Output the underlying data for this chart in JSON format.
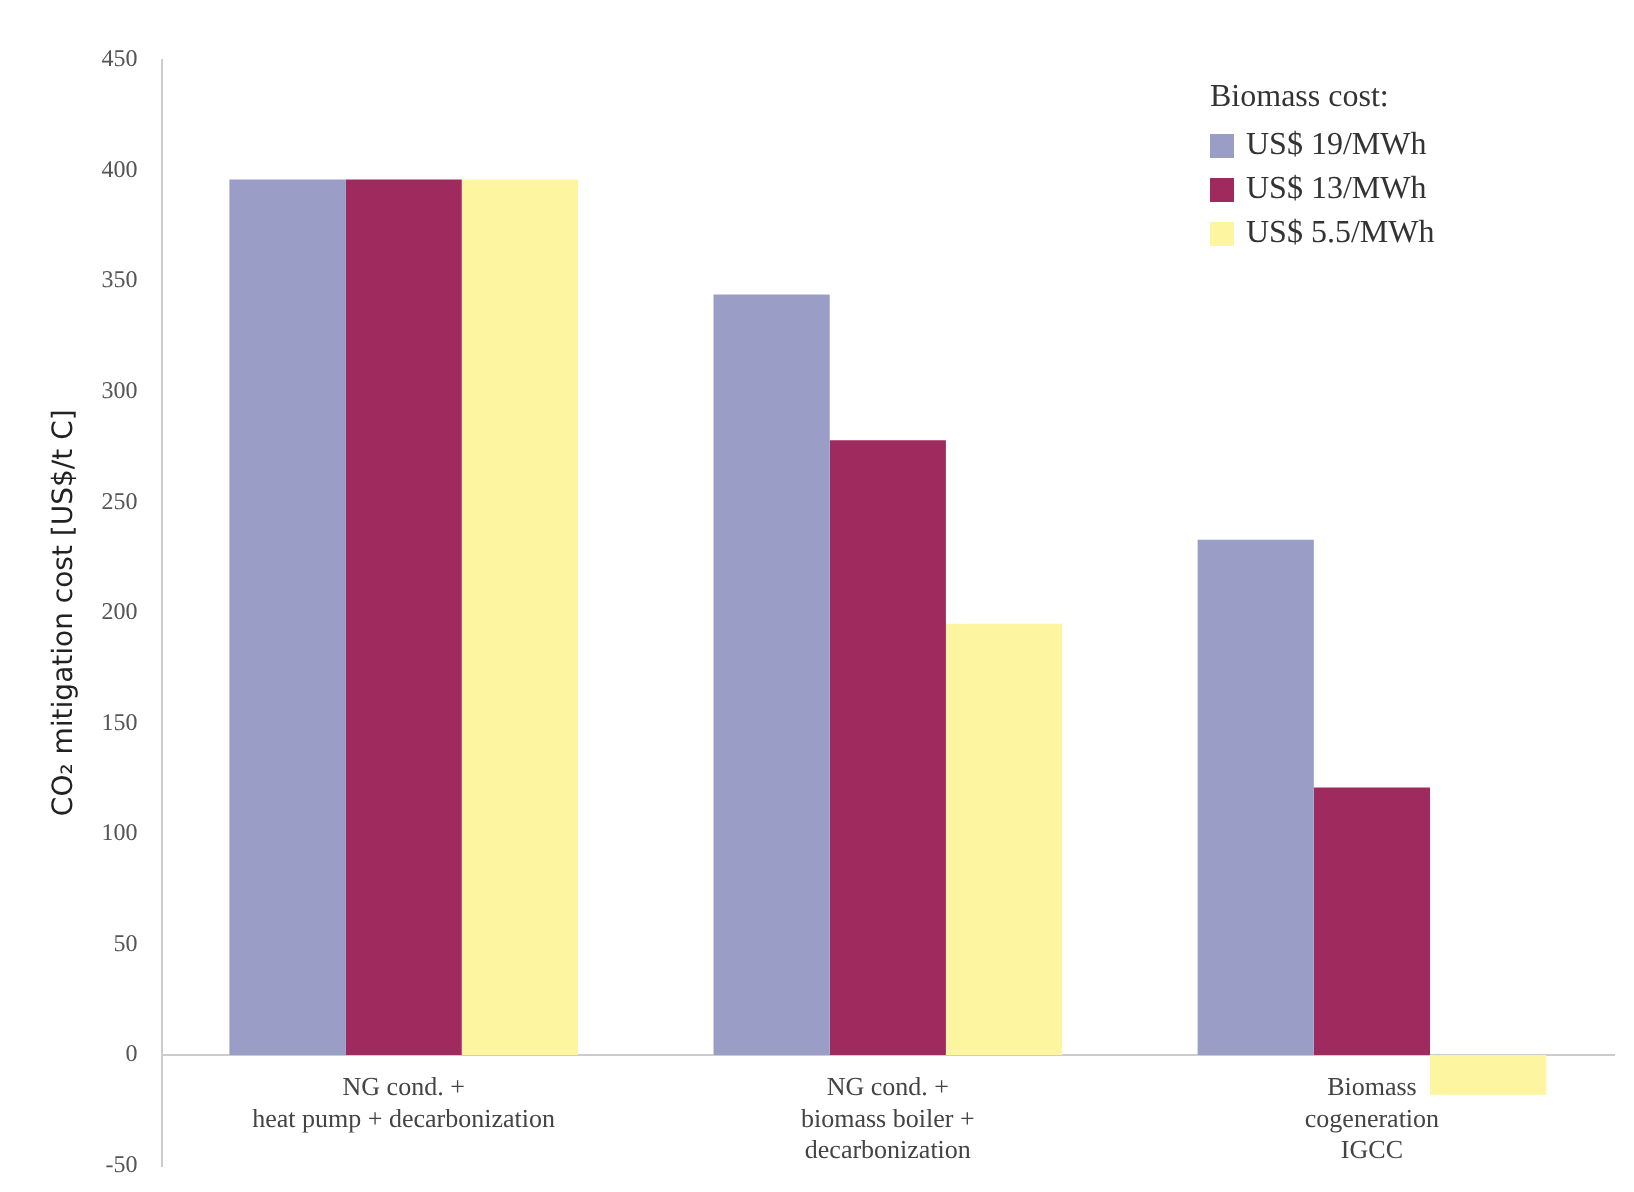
{
  "chart_data": {
    "type": "bar",
    "categories": [
      "NG cond. +\nheat pump + decarbonization",
      "NG cond. +\nbiomass boiler +\ndecarbonization",
      "Biomass\ncogeneration\nIGCC"
    ],
    "series": [
      {
        "name": "US$ 19/MWh",
        "color": "#9a9ec6",
        "values": [
          396,
          344,
          233
        ]
      },
      {
        "name": "US$ 13/MWh",
        "color": "#9e2a5e",
        "values": [
          396,
          278,
          121
        ]
      },
      {
        "name": "US$ 5.5/MWh",
        "color": "#fef5a0",
        "values": [
          396,
          195,
          -18
        ]
      }
    ],
    "ylabel": "CO₂ mitigation cost [US$/t C]",
    "legend_title": "Biomass cost:",
    "ylim": [
      -50,
      450
    ],
    "yticks": [
      -50,
      0,
      50,
      100,
      150,
      200,
      250,
      300,
      350,
      400,
      450
    ],
    "grid": false,
    "legend": "top right"
  }
}
